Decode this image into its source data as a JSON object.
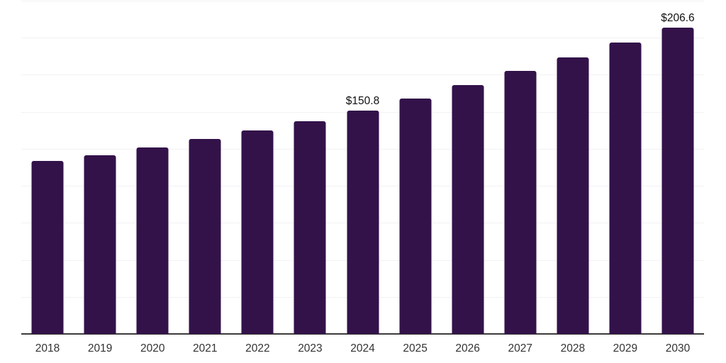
{
  "chart_data": {
    "type": "bar",
    "title": "",
    "xlabel": "",
    "ylabel": "",
    "categories": [
      "2018",
      "2019",
      "2020",
      "2021",
      "2022",
      "2023",
      "2024",
      "2025",
      "2026",
      "2027",
      "2028",
      "2029",
      "2030"
    ],
    "values": [
      116.6,
      120.7,
      126.0,
      131.5,
      137.3,
      143.8,
      150.8,
      159.0,
      168.1,
      177.5,
      186.7,
      197.0,
      206.6
    ],
    "data_labels": [
      "",
      "",
      "",
      "",
      "",
      "",
      "$150.8",
      "",
      "",
      "",
      "",
      "",
      "$206.6"
    ],
    "ylim": [
      0,
      225
    ],
    "gridline_step": 25,
    "grid": true,
    "legend_position": "none",
    "y_axis_tick_labels_visible": false,
    "colors": {
      "bar": "#33124A",
      "gridline": "#f2f1f5",
      "axis_line": "#3c3c3c",
      "data_label_text": "#111111",
      "tick_label_text": "#333333",
      "background": "#ffffff"
    }
  }
}
